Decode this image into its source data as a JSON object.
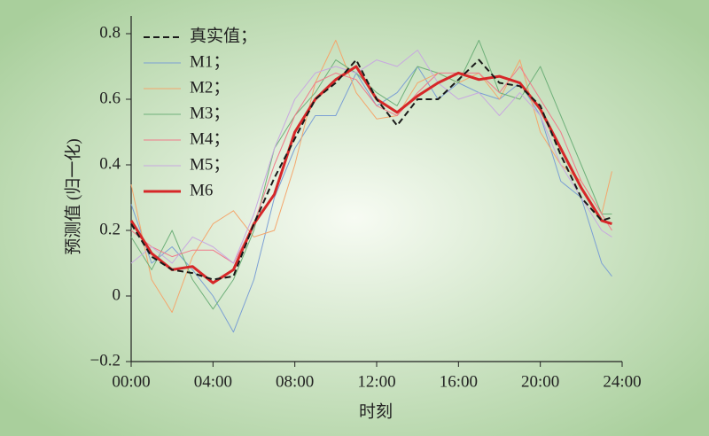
{
  "chart_data": {
    "type": "line",
    "xlabel": "时刻",
    "ylabel": "预测值 (归一化)",
    "x": [
      0,
      1,
      2,
      3,
      4,
      5,
      6,
      7,
      8,
      9,
      10,
      11,
      12,
      13,
      14,
      15,
      16,
      17,
      18,
      19,
      20,
      21,
      22,
      23,
      23.5
    ],
    "xlim": [
      0,
      24
    ],
    "xticks": [
      {
        "value": 0,
        "label": "00:00"
      },
      {
        "value": 4,
        "label": "04:00"
      },
      {
        "value": 8,
        "label": "08:00"
      },
      {
        "value": 12,
        "label": "12:00"
      },
      {
        "value": 16,
        "label": "16:00"
      },
      {
        "value": 20,
        "label": "20:00"
      },
      {
        "value": 24,
        "label": "24:00"
      }
    ],
    "ylim": [
      -0.2,
      0.8
    ],
    "yticks": [
      {
        "value": -0.2,
        "label": "−0.2"
      },
      0,
      0.2,
      0.4,
      0.6,
      0.8
    ],
    "legend": "upper-left",
    "series": [
      {
        "name": "真实值；",
        "color": "#1a1a1a",
        "line_style": "dashed",
        "linewidth": 2,
        "values": [
          0.22,
          0.12,
          0.08,
          0.07,
          0.05,
          0.06,
          0.22,
          0.36,
          0.48,
          0.6,
          0.65,
          0.72,
          0.6,
          0.52,
          0.6,
          0.6,
          0.66,
          0.72,
          0.65,
          0.64,
          0.58,
          0.43,
          0.3,
          0.23,
          0.24
        ]
      },
      {
        "name": "M1；",
        "color": "#7b9fd4",
        "line_style": "solid",
        "linewidth": 1,
        "values": [
          0.28,
          0.1,
          0.15,
          0.08,
          0.0,
          -0.11,
          0.05,
          0.3,
          0.45,
          0.55,
          0.55,
          0.68,
          0.58,
          0.62,
          0.7,
          0.6,
          0.65,
          0.62,
          0.6,
          0.65,
          0.55,
          0.35,
          0.3,
          0.1,
          0.06
        ]
      },
      {
        "name": "M2；",
        "color": "#f4a66c",
        "line_style": "solid",
        "linewidth": 1,
        "values": [
          0.34,
          0.05,
          -0.05,
          0.12,
          0.22,
          0.26,
          0.18,
          0.2,
          0.4,
          0.65,
          0.78,
          0.62,
          0.54,
          0.55,
          0.65,
          0.68,
          0.65,
          0.68,
          0.6,
          0.72,
          0.5,
          0.4,
          0.35,
          0.25,
          0.38
        ]
      },
      {
        "name": "M3；",
        "color": "#6fb07a",
        "line_style": "solid",
        "linewidth": 1,
        "values": [
          0.18,
          0.08,
          0.2,
          0.05,
          -0.04,
          0.05,
          0.2,
          0.45,
          0.55,
          0.62,
          0.72,
          0.68,
          0.62,
          0.58,
          0.7,
          0.68,
          0.65,
          0.78,
          0.62,
          0.6,
          0.7,
          0.55,
          0.4,
          0.25,
          0.25
        ]
      },
      {
        "name": "M4；",
        "color": "#f07a8a",
        "line_style": "solid",
        "linewidth": 1,
        "values": [
          0.2,
          0.15,
          0.12,
          0.14,
          0.14,
          0.1,
          0.22,
          0.4,
          0.55,
          0.65,
          0.68,
          0.66,
          0.58,
          0.55,
          0.62,
          0.68,
          0.68,
          0.68,
          0.62,
          0.7,
          0.6,
          0.5,
          0.35,
          0.25,
          0.2
        ]
      },
      {
        "name": "M5；",
        "color": "#c8a8e0",
        "line_style": "solid",
        "linewidth": 1,
        "values": [
          0.1,
          0.15,
          0.1,
          0.18,
          0.15,
          0.1,
          0.25,
          0.45,
          0.6,
          0.68,
          0.7,
          0.68,
          0.72,
          0.7,
          0.75,
          0.65,
          0.6,
          0.62,
          0.55,
          0.62,
          0.55,
          0.4,
          0.3,
          0.2,
          0.18
        ]
      },
      {
        "name": "M6",
        "color": "#d62728",
        "line_style": "solid",
        "linewidth": 3,
        "values": [
          0.23,
          0.13,
          0.08,
          0.09,
          0.04,
          0.08,
          0.22,
          0.31,
          0.5,
          0.6,
          0.66,
          0.7,
          0.6,
          0.56,
          0.61,
          0.65,
          0.68,
          0.66,
          0.67,
          0.65,
          0.57,
          0.45,
          0.33,
          0.23,
          0.22
        ]
      }
    ]
  }
}
